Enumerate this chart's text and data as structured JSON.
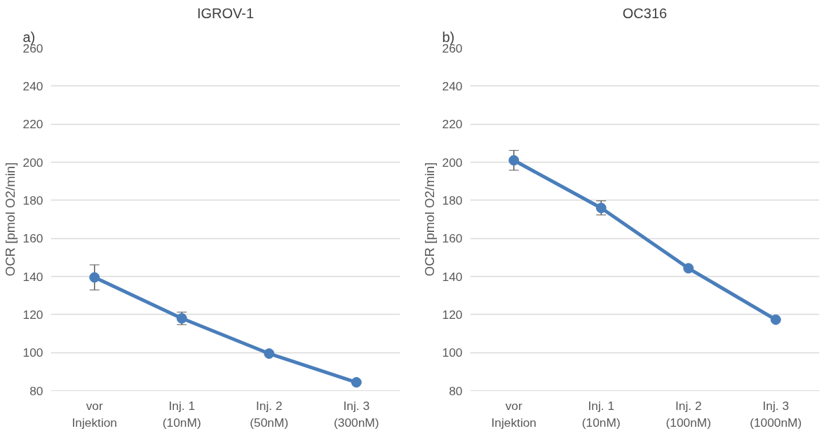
{
  "chart_data": [
    {
      "type": "line",
      "title": "IGROV-1",
      "annotations": [
        "a)"
      ],
      "ylabel": "OCR [pmol O2/min]",
      "categories": [
        "vor\nInjektion",
        "Inj. 1\n(10nM)",
        "Inj. 2\n(50nM)",
        "Inj. 3\n(300nM)"
      ],
      "series": [
        {
          "color": "#4a7ebb",
          "values": [
            139.5,
            118,
            99.5,
            84.4
          ],
          "errors": [
            6.6,
            3.3,
            null,
            null
          ]
        }
      ],
      "ylim": [
        80,
        260
      ],
      "yticks": [
        80,
        100,
        120,
        140,
        160,
        180,
        200,
        220,
        240,
        260
      ],
      "grid": "y",
      "marker": "circle",
      "line_style": "solid"
    },
    {
      "type": "line",
      "title": "OC316",
      "annotations": [
        "b)"
      ],
      "ylabel": "OCR [pmol O2/min]",
      "categories": [
        "vor\nInjektion",
        "Inj. 1\n(10nM)",
        "Inj. 2\n(100nM)",
        "Inj. 3\n(1000nM)"
      ],
      "series": [
        {
          "color": "#4a7ebb",
          "values": [
            201,
            176,
            144.3,
            117.3
          ],
          "errors": [
            5.2,
            3.7,
            null,
            null
          ]
        }
      ],
      "ylim": [
        80,
        260
      ],
      "yticks": [
        80,
        100,
        120,
        140,
        160,
        180,
        200,
        220,
        240,
        260
      ],
      "grid": "y",
      "marker": "circle",
      "line_style": "solid"
    }
  ]
}
